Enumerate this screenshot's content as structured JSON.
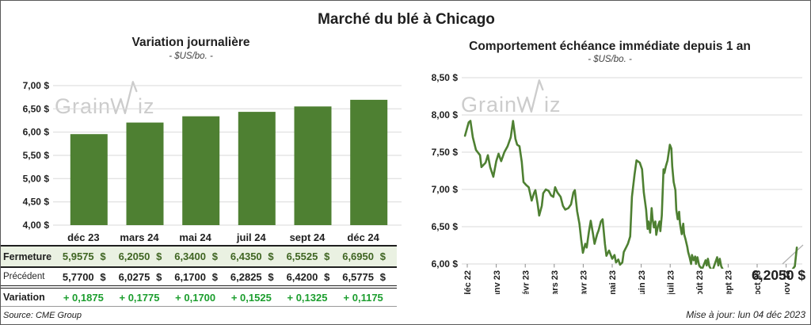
{
  "header": {
    "title": "Marché du blé à Chicago"
  },
  "theme": {
    "green": "#4e8032",
    "rowbg": "#eaf1e2",
    "ferm": "#3f6522",
    "vargreen": "#1c9e2e",
    "grid": "#d9d9d9",
    "ink": "#1f1f1f",
    "wm": "#c7c7c7",
    "frame": "#595959",
    "tick": "#8c8c8c",
    "leader": "#b0b0b0"
  },
  "watermark": {
    "left_part": "Grain",
    "right_part": "iz"
  },
  "left_chart": {
    "title": "Variation  journalière",
    "subtitle": "- $US/bo. -"
  },
  "right_chart": {
    "title": "Comportement  échéance immédiate depuis 1 an",
    "subtitle": "- $US/bo. -",
    "annotation": "6,2050 $"
  },
  "table": {
    "currency": "$",
    "columns": [
      "déc 23",
      "mars 24",
      "mai 24",
      "juil 24",
      "sept 24",
      "déc 24"
    ],
    "rows": {
      "fermeture": {
        "label": "Fermeture",
        "values": [
          "5,9575",
          "6,2050",
          "6,3400",
          "6,4350",
          "6,5525",
          "6,6950"
        ]
      },
      "precedent": {
        "label": "Précédent",
        "values": [
          "5,7700",
          "6,0275",
          "6,1700",
          "6,2825",
          "6,4200",
          "6,5775"
        ]
      },
      "variation": {
        "label": "Variation",
        "values": [
          "+ 0,1875",
          "+ 0,1775",
          "+ 0,1700",
          "+ 0,1525",
          "+ 0,1325",
          "+ 0,1175"
        ]
      }
    }
  },
  "footer": {
    "source": "Source: CME Group",
    "updated": "Mise à jour: lun 04 déc 2023"
  },
  "chart_data": [
    {
      "type": "bar",
      "title": "Variation journalière",
      "subtitle": "- $US/bo. -",
      "categories": [
        "déc 23",
        "mars 24",
        "mai 24",
        "juil 24",
        "sept 24",
        "déc 24"
      ],
      "values": [
        5.9575,
        6.205,
        6.34,
        6.435,
        6.5525,
        6.695
      ],
      "previous_values": [
        5.77,
        6.0275,
        6.17,
        6.2825,
        6.42,
        6.5775
      ],
      "variations": [
        0.1875,
        0.1775,
        0.17,
        0.1525,
        0.1325,
        0.1175
      ],
      "ylim": [
        4.0,
        7.0
      ],
      "yticks": [
        7.0,
        6.5,
        6.0,
        5.5,
        5.0,
        4.5,
        4.0
      ],
      "ytick_labels": [
        "7,00 $",
        "6,50 $",
        "6,00 $",
        "5,50 $",
        "5,00 $",
        "4,50 $",
        "4,00 $"
      ],
      "grid": true,
      "bar_color": "#4e8032"
    },
    {
      "type": "line",
      "title": "Comportement échéance immédiate depuis 1 an",
      "subtitle": "- $US/bo. -",
      "x_labels": [
        "déc 22",
        "janv 23",
        "févr 23",
        "mars 23",
        "avr 23",
        "mai 23",
        "juin 23",
        "juil 23",
        "août 23",
        "sept 23",
        "oct 23",
        "nov 23"
      ],
      "ylim": [
        6.0,
        8.5
      ],
      "yticks": [
        8.5,
        8.0,
        7.5,
        7.0,
        6.5,
        6.0
      ],
      "ytick_labels": [
        "8,50 $",
        "8,00 $",
        "7,50 $",
        "7,00 $",
        "6,50 $",
        "6,00 $"
      ],
      "grid": true,
      "line_color": "#4e8032",
      "last_value": 6.205,
      "last_value_label": "6,2050 $",
      "points": [
        [
          -0.08,
          7.72
        ],
        [
          0.05,
          7.9
        ],
        [
          0.11,
          7.92
        ],
        [
          0.19,
          7.7
        ],
        [
          0.3,
          7.53
        ],
        [
          0.44,
          7.46
        ],
        [
          0.49,
          7.3
        ],
        [
          0.63,
          7.36
        ],
        [
          0.71,
          7.46
        ],
        [
          0.79,
          7.3
        ],
        [
          0.9,
          7.17
        ],
        [
          1.0,
          7.38
        ],
        [
          1.08,
          7.48
        ],
        [
          1.17,
          7.38
        ],
        [
          1.28,
          7.5
        ],
        [
          1.39,
          7.58
        ],
        [
          1.5,
          7.7
        ],
        [
          1.58,
          7.92
        ],
        [
          1.66,
          7.68
        ],
        [
          1.72,
          7.6
        ],
        [
          1.8,
          7.58
        ],
        [
          1.88,
          7.37
        ],
        [
          1.94,
          7.1
        ],
        [
          2.03,
          7.06
        ],
        [
          2.12,
          7.03
        ],
        [
          2.22,
          6.85
        ],
        [
          2.3,
          6.95
        ],
        [
          2.35,
          6.99
        ],
        [
          2.43,
          6.8
        ],
        [
          2.48,
          6.65
        ],
        [
          2.57,
          6.78
        ],
        [
          2.62,
          6.95
        ],
        [
          2.71,
          7.0
        ],
        [
          2.81,
          6.98
        ],
        [
          2.89,
          6.92
        ],
        [
          2.97,
          6.9
        ],
        [
          3.03,
          7.03
        ],
        [
          3.11,
          6.96
        ],
        [
          3.22,
          6.9
        ],
        [
          3.3,
          6.78
        ],
        [
          3.38,
          6.73
        ],
        [
          3.49,
          6.75
        ],
        [
          3.58,
          6.8
        ],
        [
          3.66,
          6.96
        ],
        [
          3.71,
          6.99
        ],
        [
          3.79,
          6.71
        ],
        [
          3.87,
          6.54
        ],
        [
          3.93,
          6.33
        ],
        [
          3.99,
          6.15
        ],
        [
          4.07,
          6.27
        ],
        [
          4.12,
          6.22
        ],
        [
          4.2,
          6.44
        ],
        [
          4.26,
          6.58
        ],
        [
          4.34,
          6.4
        ],
        [
          4.39,
          6.27
        ],
        [
          4.48,
          6.4
        ],
        [
          4.53,
          6.45
        ],
        [
          4.61,
          6.57
        ],
        [
          4.67,
          6.6
        ],
        [
          4.75,
          6.27
        ],
        [
          4.8,
          6.11
        ],
        [
          4.89,
          6.18
        ],
        [
          5.0,
          6.07
        ],
        [
          5.08,
          6.12
        ],
        [
          5.13,
          6.02
        ],
        [
          5.21,
          6.06
        ],
        [
          5.27,
          5.99
        ],
        [
          5.35,
          6.02
        ],
        [
          5.4,
          6.16
        ],
        [
          5.49,
          6.23
        ],
        [
          5.54,
          6.27
        ],
        [
          5.62,
          6.37
        ],
        [
          5.68,
          6.9
        ],
        [
          5.77,
          7.2
        ],
        [
          5.84,
          7.39
        ],
        [
          5.95,
          7.36
        ],
        [
          6.03,
          7.27
        ],
        [
          6.09,
          6.96
        ],
        [
          6.17,
          6.73
        ],
        [
          6.22,
          6.47
        ],
        [
          6.25,
          6.57
        ],
        [
          6.31,
          6.42
        ],
        [
          6.36,
          6.75
        ],
        [
          6.39,
          6.61
        ],
        [
          6.44,
          6.49
        ],
        [
          6.49,
          6.57
        ],
        [
          6.52,
          6.39
        ],
        [
          6.58,
          6.51
        ],
        [
          6.63,
          6.57
        ],
        [
          6.66,
          6.44
        ],
        [
          6.71,
          6.65
        ],
        [
          6.77,
          7.27
        ],
        [
          6.8,
          7.22
        ],
        [
          6.85,
          7.31
        ],
        [
          6.91,
          7.39
        ],
        [
          6.99,
          7.6
        ],
        [
          7.04,
          7.55
        ],
        [
          7.07,
          7.31
        ],
        [
          7.12,
          7.1
        ],
        [
          7.18,
          6.99
        ],
        [
          7.21,
          6.73
        ],
        [
          7.26,
          6.6
        ],
        [
          7.31,
          6.7
        ],
        [
          7.34,
          6.54
        ],
        [
          7.4,
          6.4
        ],
        [
          7.45,
          6.54
        ],
        [
          7.48,
          6.4
        ],
        [
          7.53,
          6.33
        ],
        [
          7.59,
          6.23
        ],
        [
          7.62,
          6.16
        ],
        [
          7.67,
          6.09
        ],
        [
          7.72,
          6.0
        ],
        [
          7.75,
          6.12
        ],
        [
          7.81,
          6.05
        ],
        [
          7.86,
          6.1
        ],
        [
          7.89,
          6.0
        ],
        [
          7.94,
          6.09
        ],
        [
          8.0,
          5.98
        ],
        [
          8.1,
          5.93
        ],
        [
          8.22,
          6.05
        ],
        [
          8.26,
          5.98
        ],
        [
          8.3,
          6.07
        ],
        [
          8.35,
          5.97
        ],
        [
          8.45,
          5.9
        ],
        [
          8.62,
          6.09
        ],
        [
          8.66,
          5.98
        ],
        [
          8.71,
          6.07
        ],
        [
          8.76,
          5.97
        ],
        [
          8.85,
          5.9
        ],
        [
          9.0,
          5.87
        ],
        [
          9.3,
          5.84
        ],
        [
          9.6,
          5.86
        ],
        [
          9.9,
          5.83
        ],
        [
          10.2,
          5.85
        ],
        [
          10.5,
          5.82
        ],
        [
          10.8,
          5.84
        ],
        [
          11.0,
          5.86
        ],
        [
          11.15,
          5.89
        ],
        [
          11.3,
          5.97
        ],
        [
          11.37,
          6.22
        ]
      ]
    }
  ]
}
